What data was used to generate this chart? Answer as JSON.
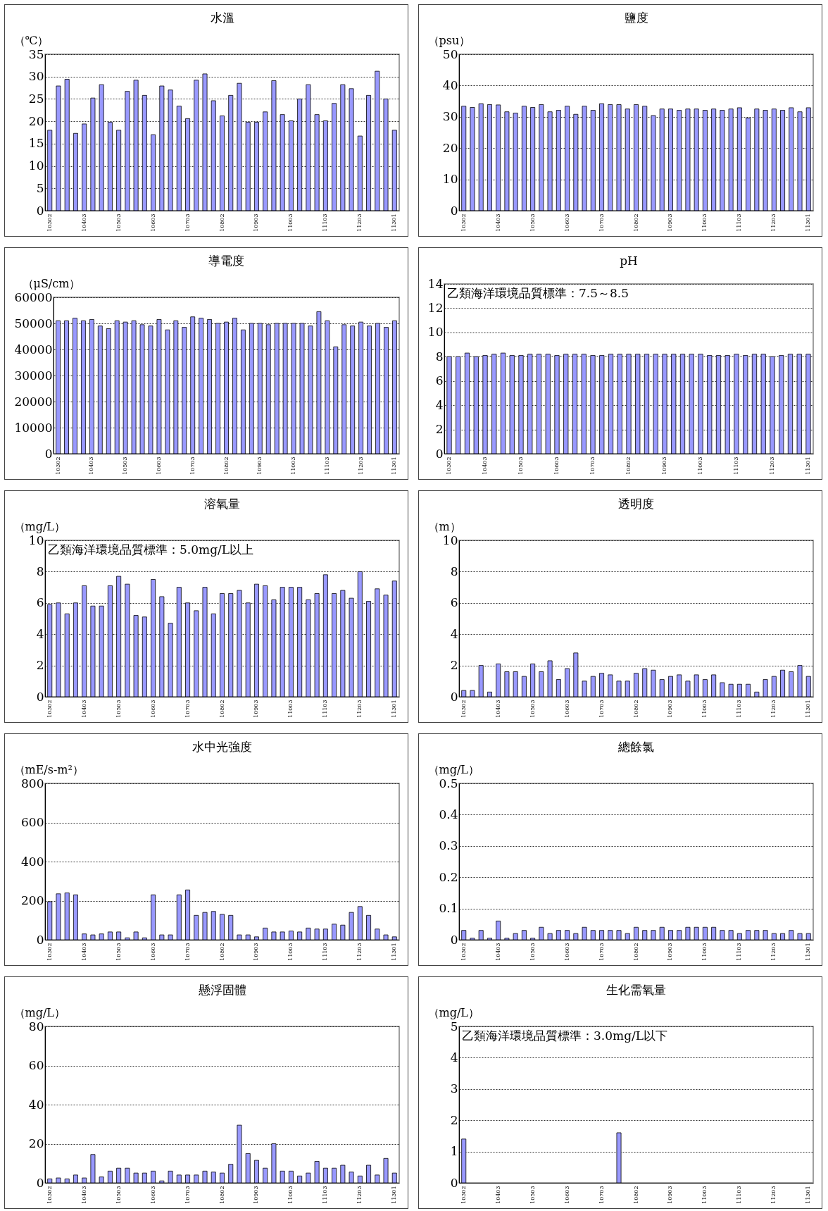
{
  "chart_data": [
    {
      "type": "bar",
      "title": "水溫",
      "ylabel": "（℃）",
      "categories": [
        "10302",
        null,
        null,
        null,
        "10403",
        null,
        null,
        null,
        "10503",
        null,
        null,
        null,
        "10603",
        null,
        null,
        null,
        "10703",
        null,
        null,
        null,
        "10802",
        null,
        null,
        null,
        "10903",
        null,
        null,
        null,
        "11003",
        null,
        null,
        null,
        "11103",
        null,
        null,
        null,
        "11203",
        null,
        null,
        null,
        "11301"
      ],
      "values": [
        18,
        27.9,
        29.4,
        17.3,
        19.4,
        25.2,
        28.2,
        19.8,
        18,
        26.7,
        29.2,
        25.8,
        17,
        27.9,
        27,
        23.4,
        20.6,
        29.2,
        30.6,
        24.6,
        21.2,
        25.8,
        28.5,
        19.8,
        19.8,
        22.1,
        29.1,
        21.5,
        20.1,
        25,
        28.2,
        21.5,
        20.1,
        24,
        28.2,
        27.3,
        16.7,
        25.8,
        31.2,
        25,
        18
      ],
      "color": "#9999ff",
      "ylim": [
        0,
        35
      ],
      "yticks": [
        0,
        5,
        10,
        15,
        20,
        25,
        30,
        35
      ],
      "grid": "y"
    },
    {
      "type": "bar",
      "title": "鹽度",
      "ylabel": "（psu）",
      "categories": [
        "10302",
        null,
        null,
        null,
        "10403",
        null,
        null,
        null,
        "10503",
        null,
        null,
        null,
        "10603",
        null,
        null,
        null,
        "10703",
        null,
        null,
        null,
        "10802",
        null,
        null,
        null,
        "10903",
        null,
        null,
        null,
        "11003",
        null,
        null,
        null,
        "11103",
        null,
        null,
        null,
        "11203",
        null,
        null,
        null,
        "11301"
      ],
      "values": [
        33.4,
        33,
        34.2,
        33.9,
        33.8,
        31.6,
        31.2,
        33.4,
        33,
        33.9,
        31.6,
        32.1,
        33.4,
        30.8,
        33.4,
        32.1,
        34.2,
        33.9,
        33.9,
        32.5,
        33.9,
        33.4,
        30.4,
        32.5,
        32.5,
        32.1,
        32.5,
        32.5,
        32.1,
        32.5,
        32.1,
        32.5,
        32.9,
        29.6,
        32.5,
        32.1,
        32.5,
        32.1,
        32.9,
        31.6,
        32.9
      ],
      "color": "#9999ff",
      "ylim": [
        0,
        50
      ],
      "yticks": [
        0,
        10,
        20,
        30,
        40,
        50
      ],
      "grid": "y"
    },
    {
      "type": "bar",
      "title": "導電度",
      "ylabel": "（μS/cm）",
      "categories": [
        "10302",
        null,
        null,
        null,
        "10403",
        null,
        null,
        null,
        "10503",
        null,
        null,
        null,
        "10603",
        null,
        null,
        null,
        "10703",
        null,
        null,
        null,
        "10802",
        null,
        null,
        null,
        "10903",
        null,
        null,
        null,
        "11003",
        null,
        null,
        null,
        "11103",
        null,
        null,
        null,
        "11203",
        null,
        null,
        null,
        "11301"
      ],
      "values": [
        51000,
        51000,
        52000,
        51000,
        51500,
        49000,
        48000,
        51000,
        50500,
        51000,
        49500,
        49000,
        51500,
        47500,
        51000,
        48500,
        52500,
        52000,
        51500,
        50000,
        50500,
        52000,
        47500,
        50000,
        50000,
        49500,
        50000,
        50000,
        50000,
        50000,
        49000,
        54500,
        51000,
        41000,
        49500,
        49000,
        50500,
        49000,
        50000,
        48500,
        51000
      ],
      "color": "#9999ff",
      "ylim": [
        0,
        60000
      ],
      "yticks": [
        0,
        10000,
        20000,
        30000,
        40000,
        50000,
        60000
      ],
      "grid": "y"
    },
    {
      "type": "bar",
      "title": "pH",
      "categories": [
        "10302",
        null,
        null,
        null,
        "10403",
        null,
        null,
        null,
        "10503",
        null,
        null,
        null,
        "10603",
        null,
        null,
        null,
        "10703",
        null,
        null,
        null,
        "10802",
        null,
        null,
        null,
        "10903",
        null,
        null,
        null,
        "11003",
        null,
        null,
        null,
        "11103",
        null,
        null,
        null,
        "11203",
        null,
        null,
        null,
        "11301"
      ],
      "values": [
        8,
        8,
        8.3,
        8,
        8.1,
        8.2,
        8.3,
        8.1,
        8.1,
        8.2,
        8.2,
        8.2,
        8.1,
        8.2,
        8.2,
        8.2,
        8.1,
        8.1,
        8.2,
        8.2,
        8.2,
        8.2,
        8.2,
        8.2,
        8.2,
        8.2,
        8.2,
        8.2,
        8.2,
        8.1,
        8.1,
        8.1,
        8.2,
        8.1,
        8.2,
        8.2,
        8,
        8.1,
        8.2,
        8.2,
        8.2
      ],
      "color": "#9999ff",
      "ylim": [
        0,
        14
      ],
      "yticks": [
        0,
        2,
        4,
        6,
        8,
        10,
        12,
        14
      ],
      "grid": "y",
      "annotations": [
        "乙類海洋環境品質標準：7.5～8.5"
      ]
    },
    {
      "type": "bar",
      "title": "溶氧量",
      "ylabel": "（mg/L）",
      "categories": [
        "10302",
        null,
        null,
        null,
        "10403",
        null,
        null,
        null,
        "10503",
        null,
        null,
        null,
        "10603",
        null,
        null,
        null,
        "10703",
        null,
        null,
        null,
        "10802",
        null,
        null,
        null,
        "10903",
        null,
        null,
        null,
        "11003",
        null,
        null,
        null,
        "11103",
        null,
        null,
        null,
        "11203",
        null,
        null,
        null,
        "11301"
      ],
      "values": [
        5.9,
        6,
        5.3,
        6,
        7.1,
        5.8,
        5.8,
        7.1,
        7.7,
        7.2,
        5.2,
        5.1,
        7.5,
        6.4,
        4.7,
        7,
        6,
        5.5,
        7,
        5.3,
        6.6,
        6.6,
        6.8,
        6,
        7.2,
        7.1,
        6.2,
        7,
        7,
        7,
        6.2,
        6.6,
        7.8,
        6.6,
        6.8,
        6.3,
        8,
        6.1,
        6.9,
        6.5,
        7.4
      ],
      "color": "#9999ff",
      "ylim": [
        0,
        10
      ],
      "yticks": [
        0,
        2,
        4,
        6,
        8,
        10
      ],
      "grid": "y",
      "annotations": [
        "乙類海洋環境品質標準：5.0mg/L以上"
      ]
    },
    {
      "type": "bar",
      "title": "透明度",
      "ylabel": "（m）",
      "categories": [
        "10302",
        null,
        null,
        null,
        "10403",
        null,
        null,
        null,
        "10503",
        null,
        null,
        null,
        "10603",
        null,
        null,
        null,
        "10703",
        null,
        null,
        null,
        "10802",
        null,
        null,
        null,
        "10903",
        null,
        null,
        null,
        "11003",
        null,
        null,
        null,
        "11103",
        null,
        null,
        null,
        "11203",
        null,
        null,
        null,
        "11301"
      ],
      "values": [
        0.4,
        0.4,
        2,
        0.3,
        2.1,
        1.6,
        1.6,
        1.3,
        2.1,
        1.6,
        2.3,
        1.1,
        1.8,
        2.8,
        1,
        1.3,
        1.5,
        1.4,
        1,
        1,
        1.5,
        1.8,
        1.7,
        1.1,
        1.3,
        1.4,
        1,
        1.4,
        1.1,
        1.4,
        0.9,
        0.8,
        0.8,
        0.8,
        0.3,
        1.1,
        1.3,
        1.7,
        1.6,
        2,
        1.3
      ],
      "color": "#9999ff",
      "ylim": [
        0,
        10
      ],
      "yticks": [
        0,
        2,
        4,
        6,
        8,
        10
      ],
      "grid": "y"
    },
    {
      "type": "bar",
      "title": "水中光強度",
      "ylabel": "（mE/s-m²）",
      "categories": [
        "10302",
        null,
        null,
        null,
        "10403",
        null,
        null,
        null,
        "10503",
        null,
        null,
        null,
        "10603",
        null,
        null,
        null,
        "10703",
        null,
        null,
        null,
        "10802",
        null,
        null,
        null,
        "10903",
        null,
        null,
        null,
        "11003",
        null,
        null,
        null,
        "11103",
        null,
        null,
        null,
        "11203",
        null,
        null,
        null,
        "11301"
      ],
      "values": [
        195,
        235,
        240,
        230,
        30,
        25,
        30,
        40,
        40,
        10,
        40,
        10,
        230,
        25,
        25,
        230,
        255,
        125,
        140,
        145,
        130,
        125,
        25,
        25,
        15,
        60,
        40,
        40,
        45,
        40,
        60,
        55,
        55,
        80,
        75,
        140,
        170,
        125,
        55,
        25,
        15
      ],
      "color": "#9999ff",
      "ylim": [
        0,
        800
      ],
      "yticks": [
        0,
        200,
        400,
        600,
        800
      ],
      "grid": "y"
    },
    {
      "type": "bar",
      "title": "總餘氯",
      "ylabel": "（mg/L）",
      "categories": [
        "10302",
        null,
        null,
        null,
        "10403",
        null,
        null,
        null,
        "10503",
        null,
        null,
        null,
        "10603",
        null,
        null,
        null,
        "10703",
        null,
        null,
        null,
        "10802",
        null,
        null,
        null,
        "10903",
        null,
        null,
        null,
        "11003",
        null,
        null,
        null,
        "11103",
        null,
        null,
        null,
        "11203",
        null,
        null,
        null,
        "11301"
      ],
      "values": [
        0.03,
        0.005,
        0.03,
        0.005,
        0.06,
        0.005,
        0.02,
        0.03,
        0.005,
        0.04,
        0.02,
        0.03,
        0.03,
        0.02,
        0.04,
        0.03,
        0.03,
        0.03,
        0.03,
        0.02,
        0.04,
        0.03,
        0.03,
        0.04,
        0.03,
        0.03,
        0.04,
        0.04,
        0.04,
        0.04,
        0.03,
        0.03,
        0.02,
        0.03,
        0.03,
        0.03,
        0.02,
        0.02,
        0.03,
        0.02,
        0.02
      ],
      "color": "#9999ff",
      "ylim": [
        0,
        0.5
      ],
      "yticks": [
        0,
        0.1,
        0.2,
        0.3,
        0.4,
        0.5
      ],
      "grid": "y"
    },
    {
      "type": "bar",
      "title": "懸浮固體",
      "ylabel": "（mg/L）",
      "categories": [
        "10302",
        null,
        null,
        null,
        "10403",
        null,
        null,
        null,
        "10503",
        null,
        null,
        null,
        "10603",
        null,
        null,
        null,
        "10703",
        null,
        null,
        null,
        "10802",
        null,
        null,
        null,
        "10903",
        null,
        null,
        null,
        "11003",
        null,
        null,
        null,
        "11103",
        null,
        null,
        null,
        "11203",
        null,
        null,
        null,
        "11301"
      ],
      "values": [
        2,
        2.5,
        2,
        4,
        2.5,
        14.5,
        3,
        6,
        7.5,
        7.5,
        5,
        5,
        6,
        1,
        6,
        4,
        4,
        4,
        6,
        5.5,
        5,
        9.5,
        29.5,
        15,
        11.5,
        7.5,
        20,
        6,
        6,
        3.5,
        5,
        11,
        7.5,
        7.5,
        9,
        5.5,
        3.5,
        9,
        4,
        12.5,
        5
      ],
      "color": "#9999ff",
      "ylim": [
        0,
        80
      ],
      "yticks": [
        0,
        20,
        40,
        60,
        80
      ],
      "grid": "y"
    },
    {
      "type": "bar",
      "title": "生化需氧量",
      "ylabel": "（mg/L）",
      "categories": [
        "10302",
        null,
        null,
        null,
        "10403",
        null,
        null,
        null,
        "10503",
        null,
        null,
        null,
        "10603",
        null,
        null,
        null,
        "10703",
        null,
        null,
        null,
        "10802",
        null,
        null,
        null,
        "10903",
        null,
        null,
        null,
        "11003",
        null,
        null,
        null,
        "11103",
        null,
        null,
        null,
        "11203",
        null,
        null,
        null,
        "11301"
      ],
      "values": [
        1.4,
        null,
        null,
        null,
        null,
        null,
        null,
        null,
        null,
        null,
        null,
        null,
        null,
        null,
        null,
        null,
        null,
        null,
        1.6,
        null,
        null,
        null,
        null,
        null,
        null,
        null,
        null,
        null,
        null,
        null,
        null,
        null,
        null,
        null,
        null,
        null,
        null,
        null,
        null,
        null,
        null
      ],
      "color": "#9999ff",
      "ylim": [
        0,
        5
      ],
      "yticks": [
        0,
        1,
        2,
        3,
        4,
        5
      ],
      "grid": "y",
      "annotations": [
        "乙類海洋環境品質標準：3.0mg/L以下"
      ]
    }
  ]
}
